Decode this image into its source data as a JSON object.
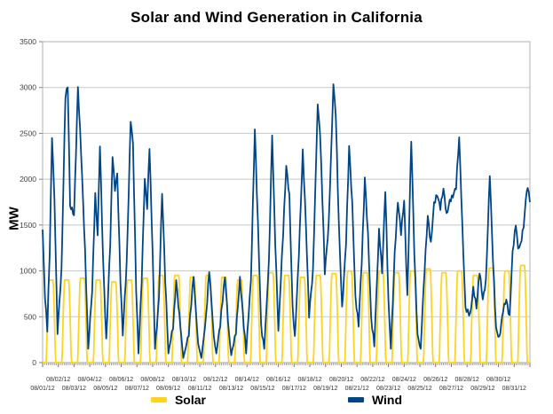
{
  "title": "Solar and Wind Generation in California",
  "y_axis": {
    "label": "MW",
    "ticks": [
      "0",
      "500",
      "1000",
      "1500",
      "2000",
      "2500",
      "3000",
      "3500"
    ],
    "min": 0,
    "max": 3500
  },
  "x_axis": {
    "row1_labels": [
      "08/02/12",
      "08/04/12",
      "08/06/12",
      "08/08/12",
      "08/10/12",
      "08/12/12",
      "08/14/12",
      "08/16/12",
      "08/18/12",
      "08/20/12",
      "08/22/12",
      "08/24/12",
      "08/26/12",
      "08/28/12",
      "08/30/12"
    ],
    "row2_labels": [
      "08/01/12",
      "08/03/12",
      "08/05/12",
      "08/07/12",
      "08/09/12",
      "08/11/12",
      "08/13/12",
      "08/15/12",
      "08/17/12",
      "08/19/12",
      "08/21/12",
      "08/23/12",
      "08/25/12",
      "08/27/12",
      "08/29/12",
      "08/31/12"
    ]
  },
  "legend": {
    "items": [
      {
        "label": "Solar",
        "color": "#FFD320"
      },
      {
        "label": "Wind",
        "color": "#004586"
      }
    ]
  },
  "colors": {
    "solar": "#FFD320",
    "wind": "#004586",
    "gridline": "#c8c8c8",
    "plot_border": "#b0b0b0",
    "tick": "#808080",
    "tick_label": "#404040"
  },
  "chart_data": {
    "type": "line",
    "title": "Solar and Wind Generation in California",
    "xlabel": "",
    "ylabel": "MW",
    "ylim": [
      0,
      3500
    ],
    "x_domain_days": [
      0,
      31
    ],
    "x_labels": [
      "08/01/12",
      "08/02/12",
      "08/03/12",
      "08/04/12",
      "08/05/12",
      "08/06/12",
      "08/07/12",
      "08/08/12",
      "08/09/12",
      "08/10/12",
      "08/11/12",
      "08/12/12",
      "08/13/12",
      "08/14/12",
      "08/15/12",
      "08/16/12",
      "08/17/12",
      "08/18/12",
      "08/19/12",
      "08/20/12",
      "08/21/12",
      "08/22/12",
      "08/23/12",
      "08/24/12",
      "08/25/12",
      "08/26/12",
      "08/27/12",
      "08/28/12",
      "08/29/12",
      "08/30/12",
      "08/31/12"
    ],
    "grid": true,
    "legend_position": "bottom",
    "series": [
      {
        "name": "Solar",
        "color": "#FFD320",
        "profile": "daily cycle: 0 MW at night, rise after ~06:00, flat top ~10:00-15:30, back to 0 by ~19:45",
        "daily_peaks_mw": [
          900,
          900,
          920,
          900,
          880,
          900,
          920,
          950,
          950,
          930,
          950,
          930,
          900,
          950,
          980,
          950,
          930,
          950,
          970,
          1000,
          980,
          1000,
          980,
          1000,
          1020,
          980,
          1000,
          950,
          1030,
          1000,
          1060
        ]
      },
      {
        "name": "Wind",
        "color": "#004586",
        "profile": "irregular; waypoints are [day-offset from Aug 1 00:00, MW] read off the plot",
        "waypoints_day_mw": [
          [
            0,
            1450
          ],
          [
            0.15,
            700
          ],
          [
            0.3,
            350
          ],
          [
            0.45,
            1200
          ],
          [
            0.6,
            2480
          ],
          [
            0.75,
            1800
          ],
          [
            0.95,
            350
          ],
          [
            1.2,
            1000
          ],
          [
            1.45,
            2900
          ],
          [
            1.6,
            3000
          ],
          [
            1.75,
            1700
          ],
          [
            2.0,
            1600
          ],
          [
            2.25,
            3020
          ],
          [
            2.45,
            2300
          ],
          [
            2.7,
            1200
          ],
          [
            2.9,
            150
          ],
          [
            3.15,
            800
          ],
          [
            3.35,
            1850
          ],
          [
            3.5,
            1400
          ],
          [
            3.65,
            2370
          ],
          [
            3.85,
            1100
          ],
          [
            4.05,
            250
          ],
          [
            4.3,
            1300
          ],
          [
            4.45,
            2280
          ],
          [
            4.6,
            1900
          ],
          [
            4.75,
            2060
          ],
          [
            4.95,
            900
          ],
          [
            5.1,
            300
          ],
          [
            5.35,
            1100
          ],
          [
            5.6,
            2630
          ],
          [
            5.75,
            2400
          ],
          [
            5.95,
            800
          ],
          [
            6.1,
            100
          ],
          [
            6.3,
            900
          ],
          [
            6.5,
            2000
          ],
          [
            6.65,
            1700
          ],
          [
            6.8,
            2370
          ],
          [
            7.0,
            1200
          ],
          [
            7.15,
            150
          ],
          [
            7.4,
            700
          ],
          [
            7.6,
            1850
          ],
          [
            7.8,
            900
          ],
          [
            8.0,
            100
          ],
          [
            8.3,
            400
          ],
          [
            8.5,
            900
          ],
          [
            8.7,
            500
          ],
          [
            8.95,
            50
          ],
          [
            9.3,
            300
          ],
          [
            9.6,
            950
          ],
          [
            9.9,
            200
          ],
          [
            10.1,
            50
          ],
          [
            10.4,
            500
          ],
          [
            10.6,
            1000
          ],
          [
            10.9,
            250
          ],
          [
            11.05,
            100
          ],
          [
            11.3,
            400
          ],
          [
            11.6,
            950
          ],
          [
            11.85,
            300
          ],
          [
            12.0,
            80
          ],
          [
            12.3,
            350
          ],
          [
            12.55,
            900
          ],
          [
            12.8,
            400
          ],
          [
            12.95,
            100
          ],
          [
            13.25,
            900
          ],
          [
            13.5,
            2530
          ],
          [
            13.7,
            1500
          ],
          [
            13.9,
            400
          ],
          [
            14.1,
            150
          ],
          [
            14.4,
            1100
          ],
          [
            14.6,
            2480
          ],
          [
            14.8,
            1300
          ],
          [
            15.0,
            350
          ],
          [
            15.3,
            1400
          ],
          [
            15.5,
            2130
          ],
          [
            15.7,
            1800
          ],
          [
            15.9,
            600
          ],
          [
            16.05,
            250
          ],
          [
            16.3,
            1200
          ],
          [
            16.55,
            2300
          ],
          [
            16.75,
            1500
          ],
          [
            16.95,
            500
          ],
          [
            17.2,
            1000
          ],
          [
            17.5,
            2800
          ],
          [
            17.65,
            2500
          ],
          [
            17.8,
            1800
          ],
          [
            17.95,
            1000
          ],
          [
            18.2,
            1500
          ],
          [
            18.5,
            3050
          ],
          [
            18.65,
            2700
          ],
          [
            18.85,
            1500
          ],
          [
            19.05,
            600
          ],
          [
            19.3,
            1300
          ],
          [
            19.5,
            2350
          ],
          [
            19.7,
            1700
          ],
          [
            19.9,
            700
          ],
          [
            20.1,
            400
          ],
          [
            20.3,
            1100
          ],
          [
            20.5,
            2030
          ],
          [
            20.7,
            1400
          ],
          [
            20.9,
            500
          ],
          [
            21.1,
            200
          ],
          [
            21.4,
            1450
          ],
          [
            21.6,
            1000
          ],
          [
            21.8,
            1900
          ],
          [
            22.0,
            700
          ],
          [
            22.15,
            150
          ],
          [
            22.4,
            1200
          ],
          [
            22.6,
            1750
          ],
          [
            22.8,
            1400
          ],
          [
            23.0,
            1750
          ],
          [
            23.2,
            700
          ],
          [
            23.45,
            2450
          ],
          [
            23.65,
            1200
          ],
          [
            23.85,
            300
          ],
          [
            24.05,
            150
          ],
          [
            24.3,
            1000
          ],
          [
            24.5,
            1600
          ],
          [
            24.7,
            1300
          ],
          [
            24.9,
            1750
          ],
          [
            25.1,
            1850
          ],
          [
            25.3,
            1700
          ],
          [
            25.5,
            1900
          ],
          [
            25.7,
            1600
          ],
          [
            25.9,
            1750
          ],
          [
            26.1,
            1800
          ],
          [
            26.3,
            1900
          ],
          [
            26.5,
            2450
          ],
          [
            26.7,
            1500
          ],
          [
            26.9,
            600
          ],
          [
            27.2,
            500
          ],
          [
            27.4,
            800
          ],
          [
            27.6,
            600
          ],
          [
            27.8,
            1000
          ],
          [
            28.0,
            700
          ],
          [
            28.2,
            900
          ],
          [
            28.45,
            2050
          ],
          [
            28.65,
            1100
          ],
          [
            28.85,
            350
          ],
          [
            29.05,
            250
          ],
          [
            29.3,
            600
          ],
          [
            29.5,
            700
          ],
          [
            29.7,
            500
          ],
          [
            29.9,
            1200
          ],
          [
            30.1,
            1500
          ],
          [
            30.25,
            1250
          ],
          [
            30.4,
            1300
          ],
          [
            30.6,
            1500
          ],
          [
            30.8,
            1900
          ],
          [
            30.92,
            1850
          ],
          [
            31.0,
            1750
          ]
        ]
      }
    ]
  }
}
